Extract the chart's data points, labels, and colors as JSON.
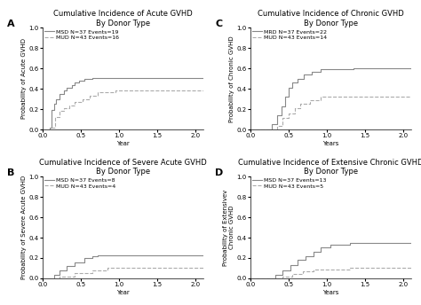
{
  "panels": [
    {
      "label": "A",
      "title": "Cumulative Incidence of Acute GVHD\nBy Donor Type",
      "ylabel": "Probability of Acute GVHD",
      "xlabel": "Year",
      "legend1": "MSD N=37 Events=19",
      "legend2": "MUD N=43 Events=16",
      "ylim": [
        0,
        1.0
      ],
      "xlim": [
        0,
        2.1
      ],
      "yticks": [
        0.0,
        0.2,
        0.4,
        0.6,
        0.8,
        1.0
      ],
      "xticks": [
        0.0,
        0.5,
        1.0,
        1.5,
        2.0
      ],
      "line1_x": [
        0.0,
        0.09,
        0.09,
        0.12,
        0.12,
        0.15,
        0.15,
        0.18,
        0.18,
        0.22,
        0.22,
        0.28,
        0.28,
        0.32,
        0.32,
        0.38,
        0.38,
        0.42,
        0.42,
        0.48,
        0.48,
        0.55,
        0.55,
        0.65,
        0.65,
        2.1
      ],
      "line1_y": [
        0.0,
        0.0,
        0.02,
        0.02,
        0.19,
        0.19,
        0.25,
        0.25,
        0.3,
        0.3,
        0.35,
        0.35,
        0.38,
        0.38,
        0.41,
        0.41,
        0.44,
        0.44,
        0.46,
        0.46,
        0.48,
        0.48,
        0.5,
        0.5,
        0.51,
        0.51
      ],
      "line2_x": [
        0.0,
        0.12,
        0.12,
        0.17,
        0.17,
        0.22,
        0.22,
        0.28,
        0.28,
        0.35,
        0.35,
        0.42,
        0.42,
        0.52,
        0.52,
        0.62,
        0.62,
        0.72,
        0.72,
        0.95,
        0.95,
        2.1
      ],
      "line2_y": [
        0.0,
        0.0,
        0.02,
        0.02,
        0.12,
        0.12,
        0.18,
        0.18,
        0.21,
        0.21,
        0.24,
        0.24,
        0.27,
        0.27,
        0.3,
        0.3,
        0.33,
        0.33,
        0.37,
        0.37,
        0.38,
        0.38
      ]
    },
    {
      "label": "B",
      "title": "Cumulative Incidence of Severe Acute GVHD\nBy Donor Type",
      "ylabel": "Probability of Severe Acute GVHD",
      "xlabel": "Year",
      "legend1": "MSD N=37 Events=8",
      "legend2": "MUD N=43 Events=4",
      "ylim": [
        0,
        1.0
      ],
      "xlim": [
        0,
        2.1
      ],
      "yticks": [
        0.0,
        0.2,
        0.4,
        0.6,
        0.8,
        1.0
      ],
      "xticks": [
        0.0,
        0.5,
        1.0,
        1.5,
        2.0
      ],
      "line1_x": [
        0.0,
        0.15,
        0.15,
        0.22,
        0.22,
        0.32,
        0.32,
        0.42,
        0.42,
        0.55,
        0.55,
        0.65,
        0.65,
        0.72,
        0.72,
        2.1
      ],
      "line1_y": [
        0.0,
        0.0,
        0.03,
        0.03,
        0.08,
        0.08,
        0.12,
        0.12,
        0.16,
        0.16,
        0.2,
        0.2,
        0.22,
        0.22,
        0.23,
        0.23
      ],
      "line2_x": [
        0.0,
        0.22,
        0.22,
        0.42,
        0.42,
        0.65,
        0.65,
        0.85,
        0.85,
        2.1
      ],
      "line2_y": [
        0.0,
        0.0,
        0.02,
        0.02,
        0.05,
        0.05,
        0.08,
        0.08,
        0.1,
        0.1
      ]
    },
    {
      "label": "C",
      "title": "Cumulative Incidence of Chronic GVHD\nBy Donor Type",
      "ylabel": "Probability of Chronic GVHD",
      "xlabel": "Years",
      "legend1": "MRD N=37 Events=22",
      "legend2": "MUD N=43 Events=14",
      "ylim": [
        0,
        1.0
      ],
      "xlim": [
        0,
        2.1
      ],
      "yticks": [
        0.0,
        0.2,
        0.4,
        0.6,
        0.8,
        1.0
      ],
      "xticks": [
        0.0,
        0.5,
        1.0,
        1.5,
        2.0
      ],
      "line1_x": [
        0.0,
        0.28,
        0.28,
        0.35,
        0.35,
        0.4,
        0.4,
        0.45,
        0.45,
        0.5,
        0.5,
        0.55,
        0.55,
        0.62,
        0.62,
        0.7,
        0.7,
        0.8,
        0.8,
        0.92,
        0.92,
        1.35,
        1.35,
        2.1
      ],
      "line1_y": [
        0.0,
        0.0,
        0.05,
        0.05,
        0.14,
        0.14,
        0.23,
        0.23,
        0.32,
        0.32,
        0.41,
        0.41,
        0.46,
        0.46,
        0.5,
        0.5,
        0.54,
        0.54,
        0.57,
        0.57,
        0.59,
        0.59,
        0.6,
        0.6
      ],
      "line2_x": [
        0.0,
        0.35,
        0.35,
        0.42,
        0.42,
        0.5,
        0.5,
        0.58,
        0.58,
        0.65,
        0.65,
        0.78,
        0.78,
        0.92,
        0.92,
        2.1
      ],
      "line2_y": [
        0.0,
        0.0,
        0.04,
        0.04,
        0.11,
        0.11,
        0.16,
        0.16,
        0.21,
        0.21,
        0.25,
        0.25,
        0.29,
        0.29,
        0.32,
        0.32
      ]
    },
    {
      "label": "D",
      "title": "Cumulative Incidence of Extensive Chronic GVHD\nBy Donor Type",
      "ylabel": "Probability of Extensivev\nChronic GVHD",
      "xlabel": "Years",
      "legend1": "MSD N=37 Events=13",
      "legend2": "MUD N=43 Events=5",
      "ylim": [
        0,
        1.0
      ],
      "xlim": [
        0,
        2.1
      ],
      "yticks": [
        0.0,
        0.2,
        0.4,
        0.6,
        0.8,
        1.0
      ],
      "xticks": [
        0.0,
        0.5,
        1.0,
        1.5,
        2.0
      ],
      "line1_x": [
        0.0,
        0.32,
        0.32,
        0.42,
        0.42,
        0.52,
        0.52,
        0.62,
        0.62,
        0.72,
        0.72,
        0.82,
        0.82,
        0.92,
        0.92,
        1.05,
        1.05,
        1.3,
        1.3,
        2.1
      ],
      "line1_y": [
        0.0,
        0.0,
        0.03,
        0.03,
        0.08,
        0.08,
        0.13,
        0.13,
        0.18,
        0.18,
        0.22,
        0.22,
        0.26,
        0.26,
        0.3,
        0.3,
        0.33,
        0.33,
        0.35,
        0.35
      ],
      "line2_x": [
        0.0,
        0.42,
        0.42,
        0.55,
        0.55,
        0.68,
        0.68,
        0.82,
        0.82,
        1.3,
        1.3,
        2.1
      ],
      "line2_y": [
        0.0,
        0.0,
        0.02,
        0.02,
        0.04,
        0.04,
        0.07,
        0.07,
        0.09,
        0.09,
        0.1,
        0.1
      ]
    }
  ],
  "line1_color": "#888888",
  "line2_color": "#aaaaaa",
  "line1_style": "-",
  "line2_style": "--",
  "line_width": 0.8,
  "font_size_title": 6.0,
  "font_size_label": 5.0,
  "font_size_tick": 5.0,
  "font_size_legend": 4.5,
  "font_size_panel_label": 8.0,
  "background_color": "#ffffff"
}
